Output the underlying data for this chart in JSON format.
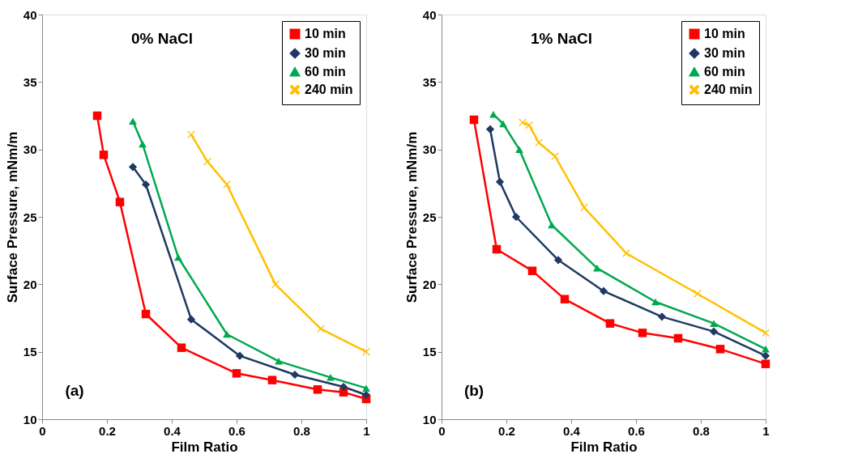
{
  "chart_data": [
    {
      "type": "line",
      "xlabel": "Film Ratio",
      "ylabel": "Surface Pressure, mNm/m",
      "annotations": [
        "0% NaCl",
        "(a)"
      ],
      "xlim": [
        0,
        1
      ],
      "xticks": [
        0,
        0.2,
        0.4,
        0.6,
        0.8,
        1
      ],
      "ylim": [
        10,
        40
      ],
      "yticks": [
        10,
        15,
        20,
        25,
        30,
        35,
        40
      ],
      "grid": false,
      "legend": "top right",
      "series": [
        {
          "name": "10 min",
          "color": "#ff0000",
          "marker": "square",
          "x": [
            0.17,
            0.19,
            0.24,
            0.32,
            0.43,
            0.6,
            0.71,
            0.85,
            0.93,
            1.0
          ],
          "values": [
            32.5,
            29.6,
            26.1,
            17.8,
            15.3,
            13.4,
            12.9,
            12.2,
            12.0,
            11.5
          ]
        },
        {
          "name": "30 min",
          "color": "#1f3864",
          "marker": "diamond",
          "x": [
            0.28,
            0.32,
            0.46,
            0.61,
            0.78,
            0.93,
            1.0
          ],
          "values": [
            28.7,
            27.4,
            17.4,
            14.7,
            13.3,
            12.4,
            11.8
          ]
        },
        {
          "name": "60 min",
          "color": "#00a850",
          "marker": "triangle",
          "x": [
            0.28,
            0.31,
            0.42,
            0.57,
            0.73,
            0.89,
            1.0
          ],
          "values": [
            32.1,
            30.4,
            22.0,
            16.3,
            14.3,
            13.1,
            12.3
          ]
        },
        {
          "name": "240 min",
          "color": "#ffc000",
          "marker": "cross",
          "x": [
            0.46,
            0.51,
            0.57,
            0.72,
            0.86,
            1.0
          ],
          "values": [
            31.1,
            29.1,
            27.4,
            20.0,
            16.7,
            15.0
          ]
        }
      ]
    },
    {
      "type": "line",
      "xlabel": "Film Ratio",
      "ylabel": "Surface Pressure, mNm/m",
      "annotations": [
        "1% NaCl",
        "(b)"
      ],
      "xlim": [
        0,
        1
      ],
      "xticks": [
        0,
        0.2,
        0.4,
        0.6,
        0.8,
        1
      ],
      "ylim": [
        10,
        40
      ],
      "yticks": [
        10,
        15,
        20,
        25,
        30,
        35,
        40
      ],
      "grid": false,
      "legend": "top right",
      "series": [
        {
          "name": "10 min",
          "color": "#ff0000",
          "marker": "square",
          "x": [
            0.1,
            0.17,
            0.28,
            0.38,
            0.52,
            0.62,
            0.73,
            0.86,
            1.0
          ],
          "values": [
            32.2,
            22.6,
            21.0,
            18.9,
            17.1,
            16.4,
            16.0,
            15.2,
            14.1
          ]
        },
        {
          "name": "30 min",
          "color": "#1f3864",
          "marker": "diamond",
          "x": [
            0.15,
            0.18,
            0.23,
            0.36,
            0.5,
            0.68,
            0.84,
            1.0
          ],
          "values": [
            31.5,
            27.6,
            25.0,
            21.8,
            19.5,
            17.6,
            16.5,
            14.7
          ]
        },
        {
          "name": "60 min",
          "color": "#00a850",
          "marker": "triangle",
          "x": [
            0.16,
            0.19,
            0.24,
            0.34,
            0.48,
            0.66,
            0.84,
            1.0
          ],
          "values": [
            32.6,
            31.9,
            30.0,
            24.4,
            21.2,
            18.7,
            17.1,
            15.2
          ]
        },
        {
          "name": "240 min",
          "color": "#ffc000",
          "marker": "cross",
          "x": [
            0.25,
            0.27,
            0.3,
            0.35,
            0.44,
            0.57,
            0.79,
            1.0
          ],
          "values": [
            32.0,
            31.8,
            30.5,
            29.5,
            25.7,
            22.3,
            19.3,
            16.4
          ]
        }
      ]
    }
  ]
}
